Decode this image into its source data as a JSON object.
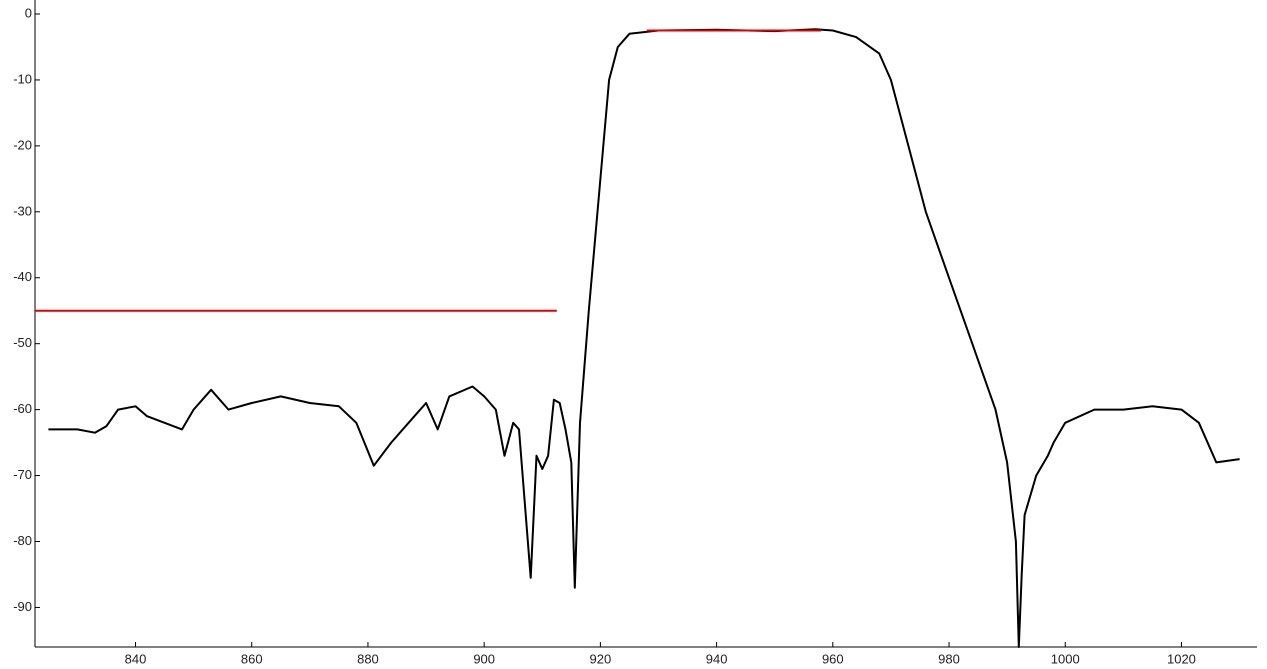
{
  "chart_data": {
    "type": "line",
    "xlim": [
      822.7,
      1033
    ],
    "ylim": [
      -96,
      0
    ],
    "xticks": [
      840,
      860,
      880,
      900,
      920,
      940,
      960,
      980,
      1000,
      1020
    ],
    "yticks": [
      0,
      -10,
      -20,
      -30,
      -40,
      -50,
      -60,
      -70,
      -80,
      -90
    ],
    "series": [
      {
        "color": "#000000",
        "x": [
          825,
          830,
          833,
          835,
          837,
          840,
          842,
          845,
          848,
          850,
          853,
          856,
          860,
          865,
          870,
          875,
          878,
          881,
          884,
          888,
          890,
          892,
          894,
          898,
          900,
          902,
          903.5,
          905,
          906,
          908,
          909,
          910,
          911,
          912,
          913,
          914,
          915,
          915.6,
          916.5,
          918,
          920,
          921.5,
          923,
          925,
          930,
          940,
          950,
          957,
          960,
          964,
          968,
          970,
          973,
          976,
          980,
          984,
          988,
          990,
          991.5,
          992,
          992.5,
          993,
          995,
          997,
          998,
          1000,
          1005,
          1010,
          1015,
          1020,
          1023,
          1025,
          1026,
          1030
        ],
        "values": [
          -63,
          -63,
          -63.5,
          -62.5,
          -60,
          -59.5,
          -61,
          -62,
          -63,
          -60,
          -57,
          -60,
          -59,
          -58,
          -59,
          -59.5,
          -62,
          -68.5,
          -65,
          -61,
          -59,
          -63,
          -58,
          -56.5,
          -58,
          -60,
          -67,
          -62,
          -63,
          -85.5,
          -67,
          -69,
          -67,
          -58.5,
          -59,
          -63,
          -68,
          -87,
          -62,
          -45,
          -25,
          -10,
          -5,
          -3,
          -2.5,
          -2.4,
          -2.6,
          -2.3,
          -2.5,
          -3.5,
          -6,
          -10,
          -20,
          -30,
          -40,
          -50,
          -60,
          -68,
          -80,
          -96,
          -85,
          -76,
          -70,
          -67,
          -65,
          -62,
          -60,
          -60,
          -59.5,
          -60,
          -62,
          -66,
          -68,
          -67.5
        ]
      },
      {
        "color": "#e00000",
        "x": [
          822.7,
          912.5
        ],
        "values": [
          -45,
          -45
        ]
      },
      {
        "color": "#e00000",
        "x": [
          928,
          958
        ],
        "values": [
          -2.5,
          -2.5
        ]
      }
    ]
  }
}
